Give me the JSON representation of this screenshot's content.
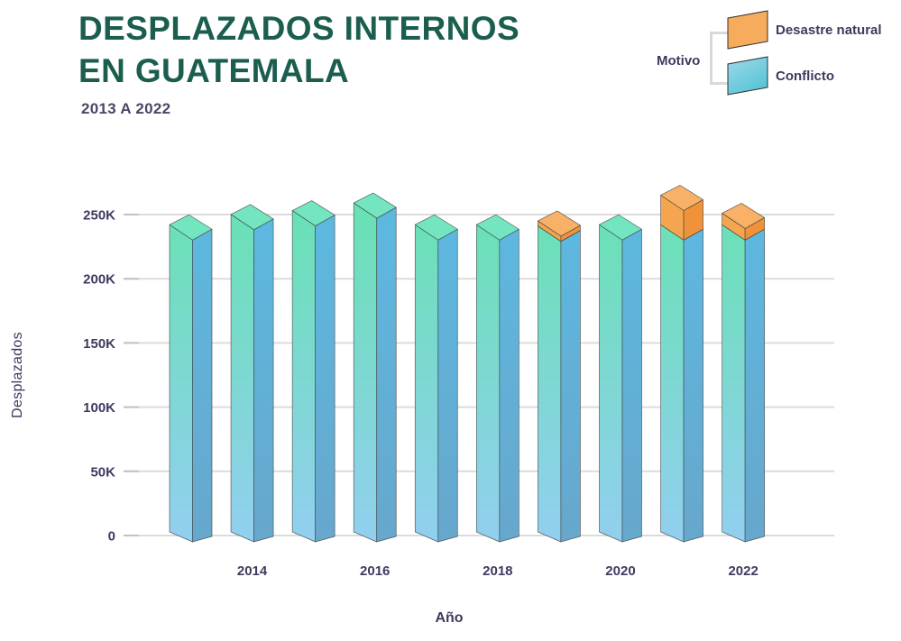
{
  "header": {
    "title_line1": "DESPLAZADOS INTERNOS",
    "title_line2": "EN GUATEMALA",
    "subtitle": "2013 A 2022"
  },
  "legend": {
    "title": "Motivo",
    "items": [
      {
        "label": "Desastre natural",
        "swatch_colors": [
          "#F6AC5C",
          "#F6AC5C"
        ]
      },
      {
        "label": "Conflicto",
        "swatch_colors": [
          "#9ED9E9",
          "#58C5D6"
        ]
      }
    ]
  },
  "chart_data": {
    "type": "bar",
    "stacked": true,
    "style": "3d-columns",
    "title": "DESPLAZADOS INTERNOS EN GUATEMALA",
    "subtitle": "2013 A 2022",
    "xlabel": "Año",
    "ylabel": "Desplazados",
    "categories": [
      "2013",
      "2014",
      "2015",
      "2016",
      "2017",
      "2018",
      "2019",
      "2020",
      "2021",
      "2022"
    ],
    "x_tick_labels": [
      "2014",
      "2016",
      "2018",
      "2020",
      "2022"
    ],
    "y_tick_labels": [
      "0",
      "50K",
      "100K",
      "150K",
      "200K",
      "250K"
    ],
    "y_tick_values": [
      0,
      50000,
      100000,
      150000,
      200000,
      250000
    ],
    "ylim": [
      0,
      250000
    ],
    "grid": true,
    "legend_position": "top-right",
    "series": [
      {
        "name": "Conflicto",
        "values": [
          240000,
          248000,
          251000,
          257000,
          240000,
          240000,
          239000,
          240000,
          240000,
          240000
        ]
      },
      {
        "name": "Desastre natural",
        "values": [
          0,
          0,
          0,
          0,
          0,
          0,
          4000,
          0,
          23000,
          9000
        ]
      }
    ],
    "colors": {
      "title": "#1b5e50",
      "subtitle": "#4b4668",
      "axis_text": "#3e3a5f",
      "grid": "#dcdcdc",
      "tick": "#c2c2c2",
      "outline": "#3d3d3d",
      "conflict_left_top": "#66E2B0",
      "conflict_left_bottom": "#92CFF0",
      "conflict_right_top": "#5CBAE2",
      "conflict_right_bottom": "#67A7CC",
      "conflict_top_face": "#73E5C1",
      "disaster_top_face": "#F8B166",
      "disaster_left_face": "#F5A54F",
      "disaster_right_face": "#EF9239"
    }
  }
}
